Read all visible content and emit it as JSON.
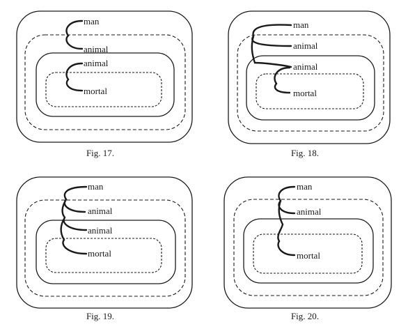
{
  "panels": [
    {
      "caption": "Fig. 17.",
      "labels": [
        "man",
        "animal",
        "animal",
        "mortal"
      ]
    },
    {
      "caption": "Fig. 18.",
      "labels": [
        "man",
        "animal",
        "animal",
        "mortal"
      ]
    },
    {
      "caption": "Fig. 19.",
      "labels": [
        "man",
        "animal",
        "animal",
        "mortal"
      ]
    },
    {
      "caption": "Fig. 20.",
      "labels": [
        "man",
        "animal",
        "mortal"
      ]
    }
  ],
  "colors": {
    "ink": "#1a1a1a",
    "paper": "#ffffff"
  }
}
